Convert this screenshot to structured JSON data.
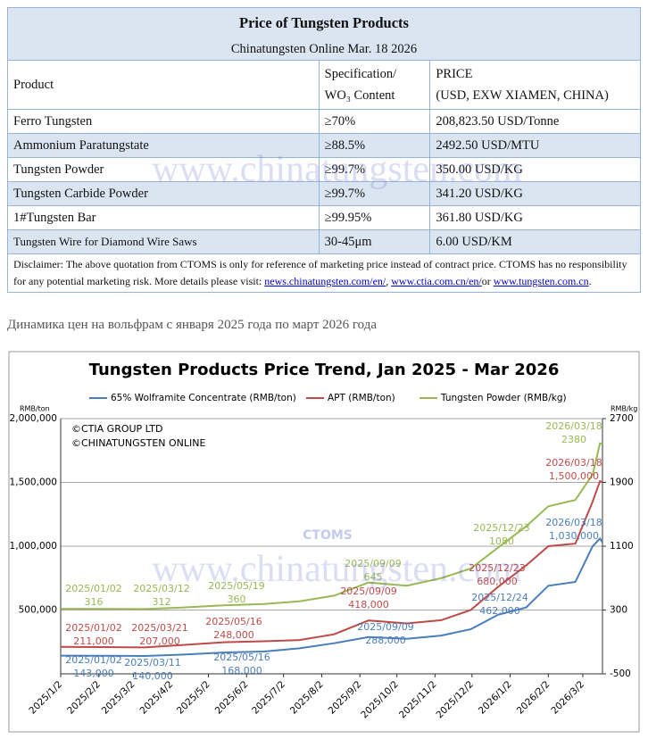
{
  "table": {
    "title": "Price of Tungsten Products",
    "subtitle": "Chinatungsten Online Mar. 18 2026",
    "headers": [
      [
        "Product"
      ],
      [
        "Specification/",
        "WO₃ Content"
      ],
      [
        "PRICE",
        "(USD, EXW XIAMEN, CHINA)"
      ]
    ],
    "rows": [
      [
        "Ferro Tungsten",
        "≥70%",
        "208,823.50 USD/Tonne"
      ],
      [
        "Ammonium Paratungstate",
        "≥88.5%",
        "2492.50 USD/MTU"
      ],
      [
        "Tungsten Powder",
        "≥99.7%",
        "350.00 USD/KG"
      ],
      [
        "Tungsten Carbide Powder",
        "≥99.7%",
        "341.20 USD/KG"
      ],
      [
        "1#Tungsten Bar",
        "≥99.95%",
        "361.80 USD/KG"
      ],
      [
        "Tungsten Wire for Diamond Wire Saws",
        "30-45μm",
        "6.00 USD/KM"
      ]
    ],
    "disclaimer": {
      "lead": "Disclaimer: The above quotation from CTOMS is only for reference of marketing price instead of contract price. CTOMS has no responsibility for any potential marketing risk. More details please visit:",
      "links": [
        "news.chinatungsten.com/en/",
        "www.ctia.com.cn/en/",
        "www.tungsten.com.cn"
      ],
      "joiners": [
        ",",
        "or",
        "."
      ]
    }
  },
  "watermark": "www.chinatungsten.com",
  "section_title": "Динамика цен на вольфрам с января 2025 года по март 2026 года",
  "chart_data": {
    "type": "line",
    "title": "Tungsten Products Price Trend, Jan 2025 - Mar 2026",
    "y_unit": "RMB/ton",
    "y2_unit": "RMB/kg",
    "logo": "CTOMS",
    "copyright": [
      "©CTIA GROUP LTD",
      "©CHINATUNGSTEN ONLINE"
    ],
    "x": [
      "2025/01/02",
      "2025/02/05",
      "2025/03/11",
      "2025/04/10",
      "2025/05/16",
      "2025/06/16",
      "2025/07/15",
      "2025/08/12",
      "2025/09/09",
      "2025/10/10",
      "2025/11/07",
      "2025/12/01",
      "2025/12/23",
      "2026/01/15",
      "2026/02/02",
      "2026/02/24",
      "2026/03/10",
      "2026/03/16",
      "2026/03/18"
    ],
    "xlim": [
      "2025/01/02",
      "2026/03/18"
    ],
    "xticks": [
      "2025/1/2",
      "2025/2/2",
      "2025/3/2",
      "2025/4/2",
      "2025/5/2",
      "2025/6/2",
      "2025/7/2",
      "2025/8/2",
      "2025/9/2",
      "2025/10/2",
      "2025/11/2",
      "2025/12/2",
      "2026/1/2",
      "2026/2/2",
      "2026/3/2"
    ],
    "ylim": [
      0,
      2000000
    ],
    "yticks": [
      {
        "value": 500000,
        "label": "500,000"
      },
      {
        "value": 1000000,
        "label": "1,000,000"
      },
      {
        "value": 1500000,
        "label": "1,500,000"
      },
      {
        "value": 2000000,
        "label": "2,000,000"
      }
    ],
    "y2lim": [
      -500,
      2700
    ],
    "y2ticks": [
      -500,
      300,
      1100,
      1900,
      2700
    ],
    "grid": true,
    "series": [
      {
        "name": "65% Wolframite Concentrate (RMB/ton)",
        "color": "#4a7ebb",
        "values": [
          143000,
          142000,
          140000,
          150000,
          168000,
          175000,
          200000,
          240000,
          288000,
          275000,
          300000,
          350000,
          462000,
          520000,
          690000,
          720000,
          1000000,
          1060000,
          1030000
        ]
      },
      {
        "name": "APT (RMB/ton)",
        "color": "#be4b48",
        "values": [
          211000,
          210000,
          207000,
          225000,
          248000,
          255000,
          265000,
          310000,
          418000,
          395000,
          420000,
          500000,
          680000,
          850000,
          1000000,
          1020000,
          1350000,
          1510000,
          1500000
        ]
      },
      {
        "name": "Tungsten Powder (RMB/kg)",
        "color": "#98b954",
        "axis": "y2",
        "values": [
          316,
          315,
          312,
          330,
          360,
          375,
          410,
          480,
          645,
          605,
          700,
          820,
          1080,
          1350,
          1600,
          1680,
          2000,
          2390,
          2380
        ]
      }
    ],
    "annotations": [
      {
        "series": 0,
        "date": "2025/01/02",
        "label": "143,000"
      },
      {
        "series": 0,
        "date": "2025/03/11",
        "label": "140,000"
      },
      {
        "series": 0,
        "date": "2025/05/16",
        "label": "168,000"
      },
      {
        "series": 0,
        "date": "2025/09/09",
        "label": "288,000"
      },
      {
        "series": 0,
        "date": "2025/12/24",
        "label": "462,000"
      },
      {
        "series": 0,
        "date": "2026/03/18",
        "label": "1,030,000"
      },
      {
        "series": 1,
        "date": "2025/01/02",
        "label": "211,000"
      },
      {
        "series": 1,
        "date": "2025/03/21",
        "label": "207,000"
      },
      {
        "series": 1,
        "date": "2025/05/16",
        "label": "248,000"
      },
      {
        "series": 1,
        "date": "2025/09/09",
        "label": "418,000"
      },
      {
        "series": 1,
        "date": "2025/12/23",
        "label": "680,000"
      },
      {
        "series": 1,
        "date": "2026/03/18",
        "label": "1,500,000"
      },
      {
        "series": 2,
        "date": "2025/01/02",
        "label": "316"
      },
      {
        "series": 2,
        "date": "2025/03/12",
        "label": "312"
      },
      {
        "series": 2,
        "date": "2025/05/19",
        "label": "360"
      },
      {
        "series": 2,
        "date": "2025/09/09",
        "label": "645"
      },
      {
        "series": 2,
        "date": "2025/12/23",
        "label": "1080"
      },
      {
        "series": 2,
        "date": "2026/03/18",
        "label": "2380"
      }
    ]
  }
}
